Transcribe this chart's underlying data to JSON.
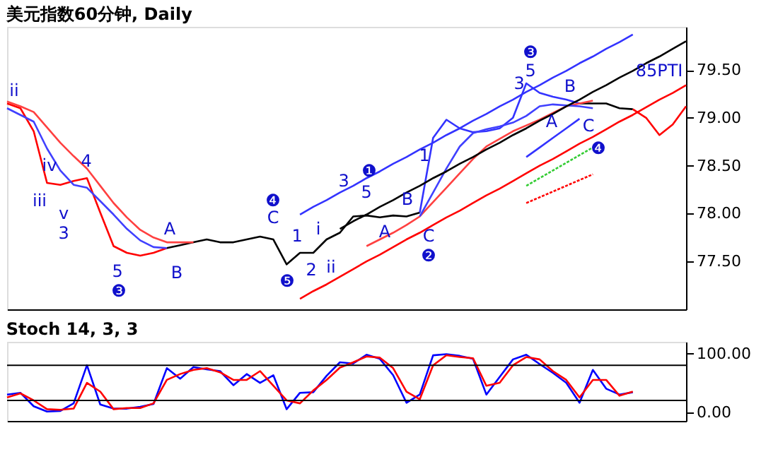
{
  "chart_data": [
    {
      "type": "line",
      "title": "美元指数60分钟, Daily",
      "ylim": [
        77.0,
        79.95
      ],
      "tick_labels": "y",
      "categories": [
        null,
        null,
        null,
        null,
        null,
        null,
        null,
        null,
        null,
        null,
        null,
        null,
        null,
        null,
        null,
        null,
        null,
        null,
        null,
        null,
        null,
        null,
        null,
        null,
        null,
        null,
        null,
        null,
        null,
        null,
        null,
        null,
        null,
        null,
        null,
        null,
        null,
        null,
        null,
        null,
        null,
        null,
        null,
        null,
        null,
        null,
        null,
        null,
        null,
        null,
        null,
        null
      ],
      "yticks": [
        {
          "value": 77.5,
          "label": "77.50"
        },
        {
          "value": 78.0,
          "label": "78.00"
        },
        {
          "value": 78.5,
          "label": "78.50"
        },
        {
          "value": 79.0,
          "label": "79.00"
        },
        {
          "value": 79.5,
          "label": "79.50"
        }
      ],
      "series": [
        {
          "color": "#ff0000",
          "values": [
            79.15,
            79.1,
            78.86,
            78.32,
            78.3,
            78.34,
            78.37,
            78.01,
            77.66,
            77.59,
            77.56,
            77.59,
            77.64,
            null,
            null,
            null,
            null,
            null,
            null,
            null,
            null,
            null,
            null,
            null,
            null,
            null,
            null,
            null,
            null,
            null,
            null,
            null,
            null,
            null,
            null,
            null,
            null,
            null,
            null,
            null,
            null,
            null,
            null,
            null,
            null,
            null,
            null,
            null,
            null,
            null,
            null,
            null
          ]
        },
        {
          "color": "#000000",
          "values": [
            null,
            null,
            null,
            null,
            null,
            null,
            null,
            null,
            null,
            null,
            null,
            null,
            77.64,
            77.67,
            77.7,
            77.73,
            77.7,
            77.7,
            77.73,
            77.76,
            77.73,
            77.47,
            77.59,
            77.59,
            77.73,
            77.8,
            77.97,
            77.98,
            77.96,
            77.98,
            77.97,
            78.01,
            null,
            null,
            null,
            null,
            null,
            null,
            null,
            null,
            null,
            null,
            null,
            null,
            null,
            null,
            null,
            null,
            null,
            null,
            null,
            null
          ]
        },
        {
          "color": "#3333ff",
          "values": [
            null,
            null,
            null,
            null,
            null,
            null,
            null,
            null,
            null,
            null,
            null,
            null,
            null,
            null,
            null,
            null,
            null,
            null,
            null,
            null,
            null,
            null,
            null,
            null,
            null,
            null,
            null,
            null,
            null,
            null,
            null,
            78.01,
            78.79,
            78.98,
            78.89,
            78.85,
            78.86,
            78.89,
            79.0,
            79.36,
            79.26,
            79.22,
            79.19,
            79.15,
            null,
            null,
            null,
            null,
            null,
            null,
            null,
            null
          ]
        },
        {
          "color": "#000000",
          "values": [
            null,
            null,
            null,
            null,
            null,
            null,
            null,
            null,
            null,
            null,
            null,
            null,
            null,
            null,
            null,
            null,
            null,
            null,
            null,
            null,
            null,
            null,
            null,
            null,
            null,
            null,
            null,
            null,
            null,
            null,
            null,
            null,
            null,
            null,
            null,
            null,
            null,
            null,
            null,
            null,
            null,
            null,
            null,
            79.15,
            79.15,
            79.15,
            79.1,
            79.09,
            null,
            null,
            null,
            null
          ]
        },
        {
          "color": "#ff0000",
          "values": [
            null,
            null,
            null,
            null,
            null,
            null,
            null,
            null,
            null,
            null,
            null,
            null,
            null,
            null,
            null,
            null,
            null,
            null,
            null,
            null,
            null,
            null,
            null,
            null,
            null,
            null,
            null,
            null,
            null,
            null,
            null,
            null,
            null,
            null,
            null,
            null,
            null,
            null,
            null,
            null,
            null,
            null,
            null,
            null,
            null,
            null,
            null,
            79.09,
            79.0,
            78.82,
            78.93,
            79.12
          ]
        },
        {
          "color": "#ff4040",
          "values": [
            79.17,
            79.12,
            79.06,
            78.9,
            78.74,
            78.6,
            78.47,
            78.29,
            78.11,
            77.96,
            77.83,
            77.75,
            77.7,
            77.7,
            77.7,
            null,
            null,
            null,
            null,
            null,
            null,
            null,
            null,
            null,
            null,
            null,
            null,
            null,
            null,
            null,
            null,
            null,
            null,
            null,
            null,
            null,
            null,
            null,
            null,
            null,
            null,
            null,
            null,
            null,
            null,
            null,
            null,
            null,
            null,
            null,
            null,
            null
          ]
        },
        {
          "color": "#4040ff",
          "values": [
            79.1,
            79.03,
            78.96,
            78.68,
            78.45,
            78.3,
            78.27,
            78.13,
            77.99,
            77.84,
            77.72,
            77.65,
            77.64,
            null,
            null,
            null,
            null,
            null,
            null,
            null,
            null,
            null,
            null,
            null,
            null,
            null,
            null,
            null,
            null,
            null,
            null,
            null,
            null,
            null,
            null,
            null,
            null,
            null,
            null,
            null,
            null,
            null,
            null,
            null,
            null,
            null,
            null,
            null,
            null,
            null,
            null,
            null
          ]
        },
        {
          "color": "#ff4040",
          "values": [
            null,
            null,
            null,
            null,
            null,
            null,
            null,
            null,
            null,
            null,
            null,
            null,
            null,
            null,
            null,
            null,
            null,
            null,
            null,
            null,
            null,
            null,
            null,
            null,
            null,
            null,
            null,
            77.66,
            77.73,
            77.8,
            77.88,
            77.97,
            78.12,
            78.27,
            78.42,
            78.57,
            78.7,
            78.78,
            78.86,
            78.92,
            78.98,
            79.05,
            79.12,
            79.15,
            79.18,
            null,
            null,
            null,
            null,
            null,
            null,
            null
          ]
        },
        {
          "color": "#4040ff",
          "values": [
            null,
            null,
            null,
            null,
            null,
            null,
            null,
            null,
            null,
            null,
            null,
            null,
            null,
            null,
            null,
            null,
            null,
            null,
            null,
            null,
            null,
            null,
            null,
            null,
            null,
            null,
            null,
            null,
            null,
            null,
            null,
            77.97,
            78.22,
            78.47,
            78.7,
            78.84,
            78.88,
            78.91,
            78.95,
            79.02,
            79.12,
            79.14,
            79.13,
            79.12,
            79.1,
            null,
            null,
            null,
            null,
            null,
            null,
            null
          ]
        },
        {
          "color": "#3333ff",
          "values": [
            null,
            null,
            null,
            null,
            null,
            null,
            null,
            null,
            null,
            null,
            null,
            null,
            null,
            null,
            null,
            null,
            null,
            null,
            null,
            null,
            null,
            null,
            77.99,
            78.07,
            78.14,
            78.22,
            78.29,
            78.37,
            78.44,
            78.52,
            78.59,
            78.67,
            78.74,
            78.82,
            78.89,
            78.97,
            79.04,
            79.12,
            79.19,
            79.27,
            79.34,
            79.42,
            79.49,
            79.57,
            79.64,
            79.72,
            79.79,
            79.87,
            null,
            null,
            null,
            null
          ]
        },
        {
          "color": "#000000",
          "values": [
            null,
            null,
            null,
            null,
            null,
            null,
            null,
            null,
            null,
            null,
            null,
            null,
            null,
            null,
            null,
            null,
            null,
            null,
            null,
            null,
            null,
            null,
            null,
            null,
            null,
            77.84,
            77.92,
            77.99,
            78.07,
            78.14,
            78.22,
            78.29,
            78.37,
            78.44,
            78.52,
            78.59,
            78.67,
            78.74,
            78.82,
            78.89,
            78.97,
            79.04,
            79.12,
            79.19,
            79.27,
            79.34,
            79.42,
            79.49,
            79.57,
            79.64,
            79.72,
            79.8
          ]
        },
        {
          "color": "#ff0000",
          "values": [
            null,
            null,
            null,
            null,
            null,
            null,
            null,
            null,
            null,
            null,
            null,
            null,
            null,
            null,
            null,
            null,
            null,
            null,
            null,
            null,
            null,
            null,
            77.11,
            77.19,
            77.26,
            77.34,
            77.42,
            77.5,
            77.57,
            77.65,
            77.73,
            77.8,
            77.88,
            77.96,
            78.03,
            78.11,
            78.19,
            78.26,
            78.34,
            78.42,
            78.5,
            78.57,
            78.65,
            78.73,
            78.8,
            78.88,
            78.96,
            79.03,
            79.11,
            79.19,
            79.26,
            79.34
          ]
        },
        {
          "color": "#33cc33",
          "line_style": "dotted",
          "values": [
            null,
            null,
            null,
            null,
            null,
            null,
            null,
            null,
            null,
            null,
            null,
            null,
            null,
            null,
            null,
            null,
            null,
            null,
            null,
            null,
            null,
            null,
            null,
            null,
            null,
            null,
            null,
            null,
            null,
            null,
            null,
            null,
            null,
            null,
            null,
            null,
            null,
            null,
            null,
            78.29,
            78.37,
            78.45,
            78.53,
            78.61,
            78.69,
            null,
            null,
            null,
            null,
            null,
            null,
            null
          ]
        },
        {
          "color": "#ff0000",
          "line_style": "dotted",
          "values": [
            null,
            null,
            null,
            null,
            null,
            null,
            null,
            null,
            null,
            null,
            null,
            null,
            null,
            null,
            null,
            null,
            null,
            null,
            null,
            null,
            null,
            null,
            null,
            null,
            null,
            null,
            null,
            null,
            null,
            null,
            null,
            null,
            null,
            null,
            null,
            null,
            null,
            null,
            null,
            78.11,
            78.17,
            78.23,
            78.29,
            78.35,
            78.41,
            null,
            null,
            null,
            null,
            null,
            null,
            null
          ]
        },
        {
          "color": "#3333ff",
          "values": [
            null,
            null,
            null,
            null,
            null,
            null,
            null,
            null,
            null,
            null,
            null,
            null,
            null,
            null,
            null,
            null,
            null,
            null,
            null,
            null,
            null,
            null,
            null,
            null,
            null,
            null,
            null,
            null,
            null,
            null,
            null,
            null,
            null,
            null,
            null,
            null,
            null,
            null,
            null,
            78.59,
            78.69,
            78.79,
            78.89,
            78.99,
            null,
            null,
            null,
            null,
            null,
            null,
            null,
            null
          ]
        }
      ],
      "annotations": [
        "ii",
        "iii",
        "iv",
        "4",
        "v",
        "3",
        "5",
        "❸",
        "A",
        "B",
        "❹",
        "C",
        "1",
        "❺",
        "2",
        "i",
        "ii",
        "3",
        "❶",
        "5",
        "A",
        "B",
        "C",
        "❷",
        "1",
        "❸",
        "5",
        "3",
        "A",
        "B",
        "C",
        "❹",
        "85PTI"
      ]
    },
    {
      "type": "line",
      "title": "Stoch 14, 3, 3",
      "ylim": [
        -15,
        120
      ],
      "tick_labels": "y",
      "categories": [
        null,
        null,
        null,
        null,
        null,
        null,
        null,
        null,
        null,
        null,
        null,
        null,
        null,
        null,
        null,
        null,
        null,
        null,
        null,
        null,
        null,
        null,
        null,
        null,
        null,
        null,
        null,
        null,
        null,
        null,
        null,
        null,
        null,
        null,
        null,
        null,
        null,
        null,
        null,
        null,
        null,
        null,
        null,
        null,
        null,
        null,
        null,
        null,
        null,
        null,
        null,
        null
      ],
      "yticks": [
        {
          "value": 0,
          "label": "0.00"
        },
        {
          "value": 100,
          "label": "100.00"
        }
      ],
      "ref_lines": [
        {
          "axis": "y",
          "value": 80,
          "color": "#000000"
        },
        {
          "axis": "y",
          "value": 20,
          "color": "#000000"
        }
      ],
      "series": [
        {
          "color": "#0000ff",
          "values": [
            30,
            33,
            10,
            1,
            2,
            15,
            80,
            13,
            6,
            6,
            9,
            14,
            75,
            57,
            77,
            73,
            70,
            46,
            65,
            50,
            63,
            5,
            33,
            34,
            62,
            85,
            83,
            98,
            91,
            63,
            16,
            30,
            97,
            99,
            96,
            91,
            30,
            60,
            90,
            98,
            82,
            67,
            50,
            16,
            72,
            40,
            30,
            34,
            null,
            null,
            null,
            null
          ]
        },
        {
          "color": "#ff0000",
          "values": [
            25,
            32,
            20,
            5,
            4,
            6,
            50,
            35,
            5,
            7,
            7,
            15,
            55,
            65,
            72,
            75,
            68,
            55,
            55,
            70,
            45,
            20,
            15,
            37,
            55,
            76,
            85,
            95,
            93,
            75,
            35,
            22,
            80,
            97,
            94,
            92,
            45,
            50,
            80,
            94,
            90,
            70,
            55,
            25,
            55,
            55,
            28,
            35,
            null,
            null,
            null,
            null
          ]
        }
      ]
    }
  ]
}
